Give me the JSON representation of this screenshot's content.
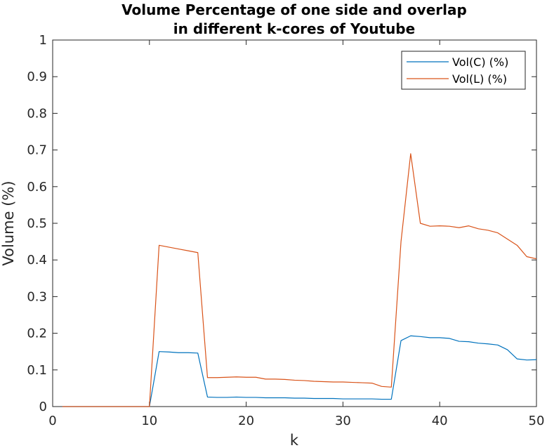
{
  "chart_data": {
    "type": "line",
    "title": [
      "Volume Percentage of one side and overlap",
      "in different k-cores of Youtube"
    ],
    "xlabel": "k",
    "ylabel": "Volume (%)",
    "xlim": [
      0,
      50
    ],
    "ylim": [
      0,
      1
    ],
    "xticks": [
      0,
      10,
      20,
      30,
      40,
      50
    ],
    "yticks": [
      0,
      0.1,
      0.2,
      0.3,
      0.4,
      0.5,
      0.6,
      0.7,
      0.8,
      0.9,
      1
    ],
    "grid": false,
    "legend_position": "top-right",
    "x": [
      1,
      2,
      3,
      4,
      5,
      6,
      7,
      8,
      9,
      10,
      11,
      12,
      13,
      14,
      15,
      16,
      17,
      18,
      19,
      20,
      21,
      22,
      23,
      24,
      25,
      26,
      27,
      28,
      29,
      30,
      31,
      32,
      33,
      34,
      35,
      36,
      37,
      38,
      39,
      40,
      41,
      42,
      43,
      44,
      45,
      46,
      47,
      48,
      49,
      50
    ],
    "series": [
      {
        "name": "Vol(C) (%)",
        "color": "#0072bd",
        "values": [
          0,
          0,
          0,
          0,
          0,
          0,
          0,
          0,
          0,
          0,
          0.15,
          0.149,
          0.147,
          0.147,
          0.146,
          0.026,
          0.025,
          0.025,
          0.026,
          0.025,
          0.025,
          0.024,
          0.024,
          0.024,
          0.023,
          0.023,
          0.022,
          0.022,
          0.022,
          0.021,
          0.021,
          0.021,
          0.021,
          0.02,
          0.02,
          0.18,
          0.193,
          0.191,
          0.188,
          0.188,
          0.186,
          0.178,
          0.177,
          0.173,
          0.171,
          0.168,
          0.155,
          0.13,
          0.127,
          0.128
        ]
      },
      {
        "name": "Vol(L) (%)",
        "color": "#d95319",
        "values": [
          0,
          0,
          0,
          0,
          0,
          0,
          0,
          0,
          0,
          0,
          0.44,
          0.435,
          0.43,
          0.425,
          0.42,
          0.079,
          0.079,
          0.08,
          0.081,
          0.08,
          0.08,
          0.075,
          0.075,
          0.074,
          0.072,
          0.071,
          0.069,
          0.068,
          0.067,
          0.067,
          0.066,
          0.065,
          0.064,
          0.055,
          0.053,
          0.45,
          0.69,
          0.5,
          0.492,
          0.493,
          0.492,
          0.488,
          0.493,
          0.485,
          0.481,
          0.474,
          0.457,
          0.44,
          0.409,
          0.403
        ]
      }
    ]
  }
}
